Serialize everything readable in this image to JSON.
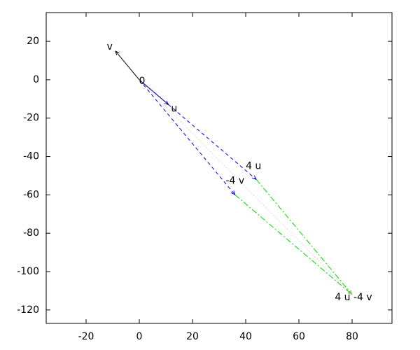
{
  "chart_data": {
    "type": "vector",
    "xlim": [
      -35,
      95
    ],
    "ylim": [
      -127,
      35
    ],
    "xticks": [
      -20,
      0,
      20,
      40,
      60,
      80
    ],
    "yticks": [
      20,
      0,
      -20,
      -40,
      -60,
      -80,
      -100,
      -120
    ],
    "points": [
      {
        "label": "0",
        "x": 0,
        "y": 0
      },
      {
        "label": "v",
        "x": -9,
        "y": 15
      },
      {
        "label": "u",
        "x": 11,
        "y": -13
      },
      {
        "label": "4 u",
        "x": 44,
        "y": -52
      },
      {
        "label": "-4 v",
        "x": 36,
        "y": -60
      },
      {
        "label": "4 u -4 v",
        "x": 80,
        "y": -112
      }
    ],
    "segments": [
      {
        "from": 0,
        "to": 1,
        "color": "#000000",
        "dash": "solid"
      },
      {
        "from": 0,
        "to": 2,
        "color": "#000060",
        "dash": "solid"
      },
      {
        "from": 0,
        "to": 3,
        "color": "#0000ff",
        "dash": "dashed"
      },
      {
        "from": 0,
        "to": 4,
        "color": "#0000ff",
        "dash": "dashed"
      },
      {
        "from": 3,
        "to": 5,
        "color": "#00dd00",
        "dash": "dashdot"
      },
      {
        "from": 4,
        "to": 5,
        "color": "#00dd00",
        "dash": "dashdot"
      },
      {
        "from": 0,
        "to": 5,
        "color": "#ffb0b0",
        "dash": "dotted"
      }
    ]
  }
}
